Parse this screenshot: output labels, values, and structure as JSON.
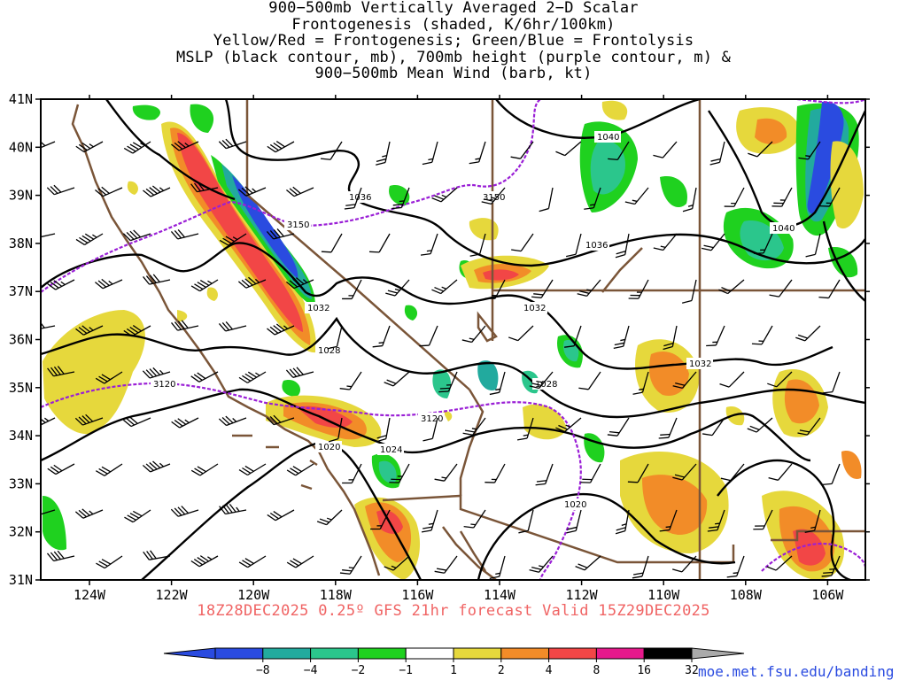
{
  "title": {
    "lines": [
      "900−500mb Vertically Averaged 2−D Scalar",
      "Frontogenesis (shaded, K/6hr/100km)",
      "Yellow/Red = Frontogenesis;  Green/Blue = Frontolysis",
      "MSLP (black contour, mb), 700mb height (purple contour, m) &",
      "900−500mb Mean Wind (barb, kt)"
    ]
  },
  "axes": {
    "lon_labels": [
      "124W",
      "122W",
      "120W",
      "118W",
      "116W",
      "114W",
      "112W",
      "110W",
      "108W",
      "106W"
    ],
    "lat_labels": [
      "41N",
      "40N",
      "39N",
      "38N",
      "37N",
      "36N",
      "35N",
      "34N",
      "33N",
      "32N",
      "31N"
    ]
  },
  "contour_labels": {
    "mslp": [
      "1040",
      "1040",
      "1036",
      "1036",
      "1032",
      "1032",
      "1032",
      "1028",
      "1028",
      "1024",
      "1020",
      "1020"
    ],
    "height": [
      "3150",
      "3150",
      "3120",
      "3120"
    ]
  },
  "colors": {
    "mslp_contour": "#000000",
    "height_contour": "#9a1fd6",
    "borders": "#7a5538",
    "frontogenesis": [
      "#e6d83c",
      "#f28c28",
      "#f24646",
      "#e6198c"
    ],
    "frontolysis": [
      "#1fd11f",
      "#2bc68c",
      "#22aa9e",
      "#2a4be0"
    ]
  },
  "colorbar": {
    "labels": [
      "−8",
      "−4",
      "−2",
      "−1",
      "1",
      "2",
      "4",
      "8",
      "16",
      "32"
    ],
    "colors": [
      "#2a4be0",
      "#22aa9e",
      "#2bc68c",
      "#1fd11f",
      "#ffffff",
      "#e6d83c",
      "#f28c28",
      "#f24646",
      "#e6198c",
      "#000000"
    ]
  },
  "valid_text": "18Z28DEC2025 0.25º GFS 21hr forecast Valid 15Z29DEC2025",
  "credit": "moe.met.fsu.edu/banding"
}
